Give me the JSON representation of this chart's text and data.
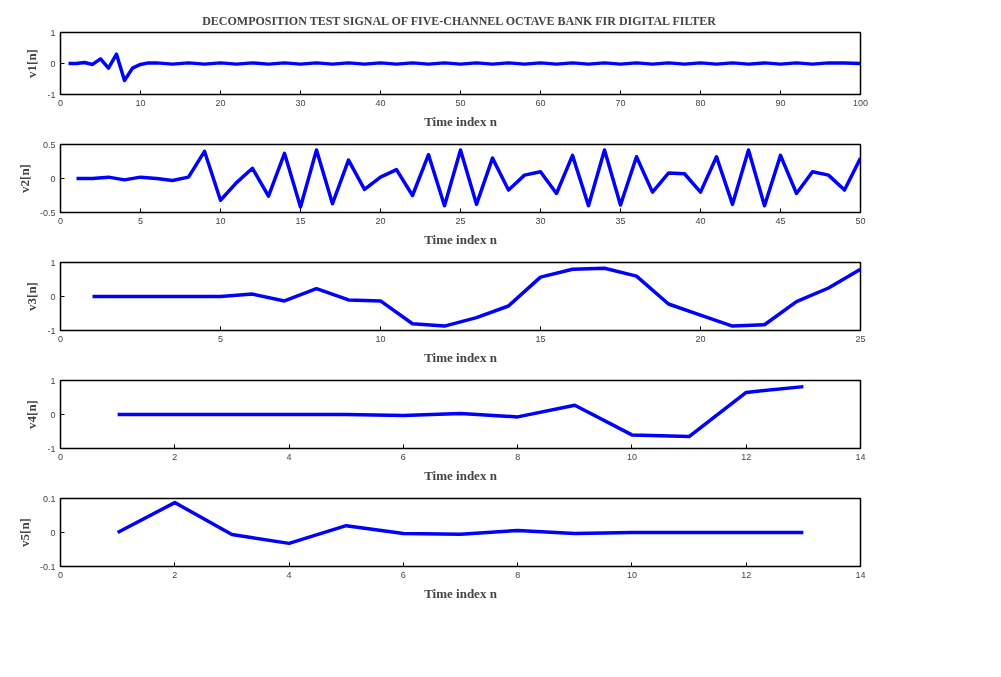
{
  "chart_data": [
    {
      "type": "line",
      "title": "DECOMPOSITION TEST SIGNAL OF FIVE-CHANNEL OCTAVE BANK FIR DIGITAL FILTER",
      "xlabel": "Time index n",
      "ylabel": "v1[n]",
      "x": [
        1,
        2,
        3,
        4,
        5,
        6,
        7,
        8,
        9,
        10,
        11,
        12,
        14,
        16,
        18,
        20,
        22,
        24,
        26,
        28,
        30,
        32,
        34,
        36,
        38,
        40,
        42,
        44,
        46,
        48,
        50,
        52,
        54,
        56,
        58,
        60,
        62,
        64,
        66,
        68,
        70,
        72,
        74,
        76,
        78,
        80,
        82,
        84,
        86,
        88,
        90,
        92,
        94,
        96,
        98,
        100
      ],
      "series": [
        {
          "color": "#0000ff",
          "values": [
            0,
            0,
            0.03,
            -0.03,
            0.15,
            -0.15,
            0.3,
            -0.55,
            -0.15,
            -0.03,
            0.02,
            0.02,
            -0.02,
            0.02,
            -0.02,
            0.02,
            -0.02,
            0.02,
            -0.02,
            0.02,
            -0.02,
            0.02,
            -0.02,
            0.02,
            -0.02,
            0.02,
            -0.02,
            0.02,
            -0.02,
            0.02,
            -0.02,
            0.02,
            -0.02,
            0.02,
            -0.02,
            0.02,
            -0.02,
            0.02,
            -0.02,
            0.02,
            -0.02,
            0.02,
            -0.02,
            0.02,
            -0.02,
            0.02,
            -0.02,
            0.02,
            -0.02,
            0.02,
            -0.02,
            0.02,
            -0.02,
            0.02,
            0.02,
            0
          ]
        }
      ],
      "xlim": [
        0,
        100
      ],
      "xticks": [
        0,
        10,
        20,
        30,
        40,
        50,
        60,
        70,
        80,
        90,
        100
      ],
      "ylim": [
        -1,
        1
      ],
      "yticks": [
        -1,
        0,
        1
      ],
      "grid": false,
      "line_style": "solid",
      "marker": "none"
    },
    {
      "type": "line",
      "xlabel": "Time index n",
      "ylabel": "v2[n]",
      "x": [
        1,
        2,
        3,
        4,
        5,
        6,
        7,
        8,
        9,
        10,
        11,
        12,
        13,
        14,
        15,
        16,
        17,
        18,
        19,
        20,
        21,
        22,
        23,
        24,
        25,
        26,
        27,
        28,
        29,
        30,
        31,
        32,
        33,
        34,
        35,
        36,
        37,
        38,
        39,
        40,
        41,
        42,
        43,
        44,
        45,
        46,
        47,
        48,
        49,
        50
      ],
      "series": [
        {
          "color": "#0000ff",
          "values": [
            0,
            0,
            0.02,
            -0.02,
            0.02,
            0,
            -0.03,
            0.02,
            0.4,
            -0.32,
            -0.06,
            0.15,
            -0.26,
            0.37,
            -0.42,
            0.42,
            -0.37,
            0.27,
            -0.16,
            0.02,
            0.13,
            -0.25,
            0.35,
            -0.4,
            0.42,
            -0.38,
            0.3,
            -0.17,
            0.05,
            0.1,
            -0.22,
            0.34,
            -0.4,
            0.42,
            -0.39,
            0.32,
            -0.2,
            0.08,
            0.07,
            -0.2,
            0.32,
            -0.38,
            0.42,
            -0.4,
            0.34,
            -0.22,
            0.1,
            0.05,
            -0.17,
            0.3
          ]
        }
      ],
      "xlim": [
        0,
        50
      ],
      "xticks": [
        0,
        5,
        10,
        15,
        20,
        25,
        30,
        35,
        40,
        45,
        50
      ],
      "ylim": [
        -0.5,
        0.5
      ],
      "yticks": [
        -0.5,
        0,
        0.5
      ],
      "grid": false,
      "line_style": "solid",
      "marker": "none"
    },
    {
      "type": "line",
      "xlabel": "Time index n",
      "ylabel": "v3[n]",
      "x": [
        1,
        2,
        3,
        4,
        5,
        6,
        7,
        8,
        9,
        10,
        11,
        12,
        13,
        14,
        15,
        16,
        17,
        18,
        19,
        20,
        21,
        22,
        23,
        24,
        25
      ],
      "series": [
        {
          "color": "#0000ff",
          "values": [
            0,
            0,
            0,
            0,
            0,
            0.07,
            -0.13,
            0.23,
            -0.1,
            -0.13,
            -0.8,
            -0.87,
            -0.62,
            -0.28,
            0.57,
            0.8,
            0.83,
            0.6,
            -0.22,
            -0.55,
            -0.87,
            -0.83,
            -0.15,
            0.25,
            0.8
          ]
        }
      ],
      "xlim": [
        0,
        25
      ],
      "xticks": [
        0,
        5,
        10,
        15,
        20,
        25
      ],
      "ylim": [
        -1,
        1
      ],
      "yticks": [
        -1,
        0,
        1
      ],
      "grid": false,
      "line_style": "solid",
      "marker": "none"
    },
    {
      "type": "line",
      "xlabel": "Time index n",
      "ylabel": "v4[n]",
      "x": [
        1,
        2,
        3,
        4,
        5,
        6,
        7,
        8,
        9,
        10,
        11,
        12,
        13
      ],
      "series": [
        {
          "color": "#0000ff",
          "values": [
            0,
            0,
            0,
            0,
            0,
            -0.03,
            0.03,
            -0.07,
            0.27,
            -0.6,
            -0.65,
            0.65,
            0.82
          ]
        }
      ],
      "xlim": [
        0,
        14
      ],
      "xticks": [
        0,
        2,
        4,
        6,
        8,
        10,
        12,
        14
      ],
      "ylim": [
        -1,
        1
      ],
      "yticks": [
        -1,
        0,
        1
      ],
      "grid": false,
      "line_style": "solid",
      "marker": "none"
    },
    {
      "type": "line",
      "xlabel": "Time index n",
      "ylabel": "v5[n]",
      "x": [
        1,
        2,
        3,
        4,
        5,
        6,
        7,
        8,
        9,
        10,
        11,
        12,
        13
      ],
      "series": [
        {
          "color": "#0000ff",
          "values": [
            0,
            0.088,
            -0.006,
            -0.032,
            0.02,
            -0.003,
            -0.005,
            0.006,
            -0.003,
            0,
            0,
            0,
            0
          ]
        }
      ],
      "xlim": [
        0,
        14
      ],
      "xticks": [
        0,
        2,
        4,
        6,
        8,
        10,
        12,
        14
      ],
      "ylim": [
        -0.1,
        0.1
      ],
      "yticks": [
        -0.1,
        0,
        0.1
      ],
      "grid": false,
      "line_style": "solid",
      "marker": "none"
    }
  ]
}
